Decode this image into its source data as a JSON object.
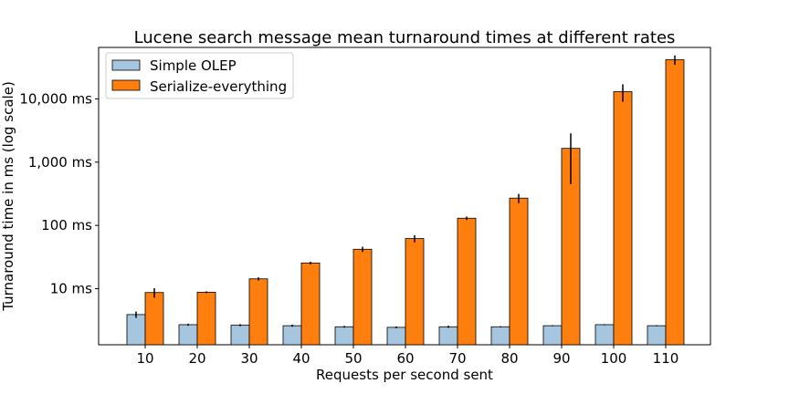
{
  "chart_data": {
    "type": "bar",
    "title": "Lucene search message mean turnaround times at different rates",
    "xlabel": "Requests per second sent",
    "ylabel": "Turnaround time in ms (log scale)",
    "yscale": "log",
    "ylim": [
      1.3,
      65000
    ],
    "categories": [
      "10",
      "20",
      "30",
      "40",
      "50",
      "60",
      "70",
      "80",
      "90",
      "100",
      "110"
    ],
    "y_ticks": [
      {
        "value": 10,
        "label": "10 ms"
      },
      {
        "value": 100,
        "label": "100 ms"
      },
      {
        "value": 1000,
        "label": "1,000 ms"
      },
      {
        "value": 10000,
        "label": "10,000 ms"
      }
    ],
    "series": [
      {
        "name": "Simple OLEP",
        "color": "#a6c6e0",
        "values": [
          3.9,
          2.7,
          2.65,
          2.6,
          2.5,
          2.45,
          2.5,
          2.5,
          2.6,
          2.7,
          2.6
        ],
        "errors": [
          0.45,
          0.1,
          0.1,
          0.1,
          0.08,
          0.08,
          0.1,
          0.05,
          0.05,
          0.05,
          0.05
        ]
      },
      {
        "name": "Serialize-everything",
        "color": "#ff7f0e",
        "values": [
          8.7,
          8.8,
          14.3,
          25.5,
          42,
          62,
          130,
          270,
          1650,
          13000,
          41500
        ],
        "errors": [
          1.5,
          0.3,
          0.8,
          1.2,
          4,
          8,
          8,
          45,
          1200,
          4000,
          7000
        ]
      }
    ],
    "legend": "top-left",
    "grid": false
  }
}
